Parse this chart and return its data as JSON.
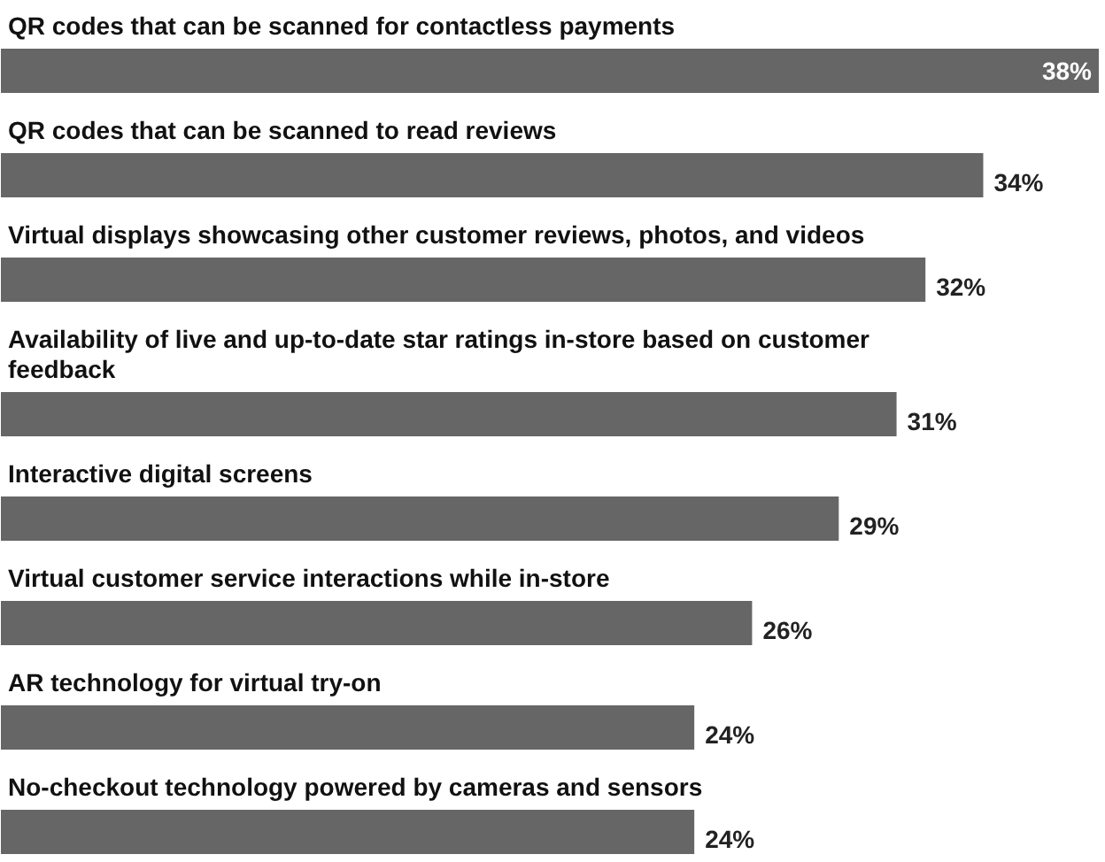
{
  "chart_data": {
    "type": "bar",
    "orientation": "horizontal",
    "color": "#666666",
    "categories": [
      "QR codes that can be scanned for contactless payments",
      "QR codes that can be scanned to read reviews",
      "Virtual displays showcasing other customer reviews, photos, and videos",
      "Availability of live and up-to-date star ratings in-store based on customer feedback",
      "Interactive digital screens",
      "Virtual customer service interactions while in-store",
      "AR technology for virtual try-on",
      "No-checkout technology powered by cameras and sensors"
    ],
    "values": [
      38,
      34,
      32,
      31,
      29,
      26,
      24,
      24
    ],
    "value_labels": [
      "38%",
      "34%",
      "32%",
      "31%",
      "29%",
      "26%",
      "24%",
      "24%"
    ]
  }
}
